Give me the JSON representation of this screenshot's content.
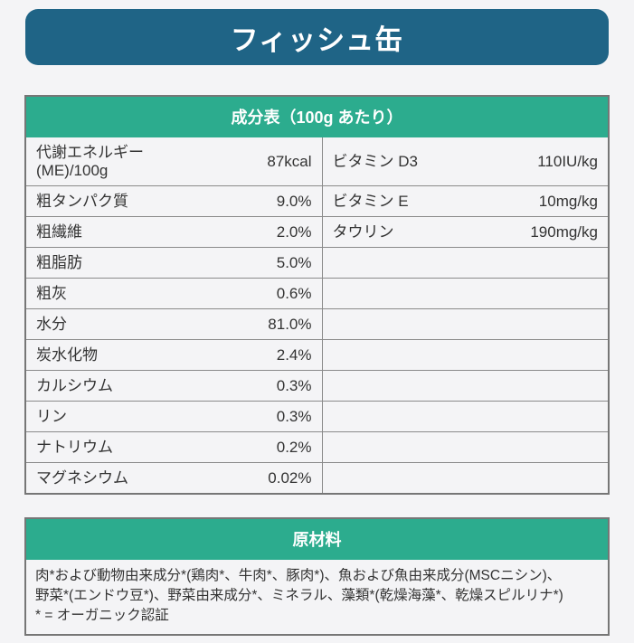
{
  "banner": {
    "title": "フィッシュ缶"
  },
  "colors": {
    "page_bg": "#f4f4f6",
    "banner_bg": "#1f6486",
    "section_header_bg": "#2cac8e",
    "grid_border": "#8a8a8a",
    "text": "#333333"
  },
  "composition": {
    "header": "成分表（100g あたり）",
    "rows": [
      {
        "label": "代謝エネルギー\n(ME)/100g",
        "value": "87kcal",
        "label2": "ビタミン D3",
        "value2": "110IU/kg"
      },
      {
        "label": "粗タンパク質",
        "value": "9.0%",
        "label2": "ビタミン E",
        "value2": "10mg/kg"
      },
      {
        "label": "粗繊維",
        "value": "2.0%",
        "label2": "タウリン",
        "value2": "190mg/kg"
      },
      {
        "label": "粗脂肪",
        "value": "5.0%",
        "label2": "",
        "value2": ""
      },
      {
        "label": "粗灰",
        "value": "0.6%",
        "label2": "",
        "value2": ""
      },
      {
        "label": "水分",
        "value": "81.0%",
        "label2": "",
        "value2": ""
      },
      {
        "label": "炭水化物",
        "value": "2.4%",
        "label2": "",
        "value2": ""
      },
      {
        "label": "カルシウム",
        "value": "0.3%",
        "label2": "",
        "value2": ""
      },
      {
        "label": "リン",
        "value": "0.3%",
        "label2": "",
        "value2": ""
      },
      {
        "label": "ナトリウム",
        "value": "0.2%",
        "label2": "",
        "value2": ""
      },
      {
        "label": "マグネシウム",
        "value": "0.02%",
        "label2": "",
        "value2": ""
      }
    ]
  },
  "ingredients": {
    "header": "原材料",
    "lines": [
      "肉*および動物由来成分*(鶏肉*、牛肉*、豚肉*)、魚および魚由来成分(MSCニシン)、",
      "野菜*(エンドウ豆*)、野菜由来成分*、ミネラル、藻類*(乾燥海藻*、乾燥スピルリナ*)",
      "* = オーガニック認証"
    ]
  }
}
